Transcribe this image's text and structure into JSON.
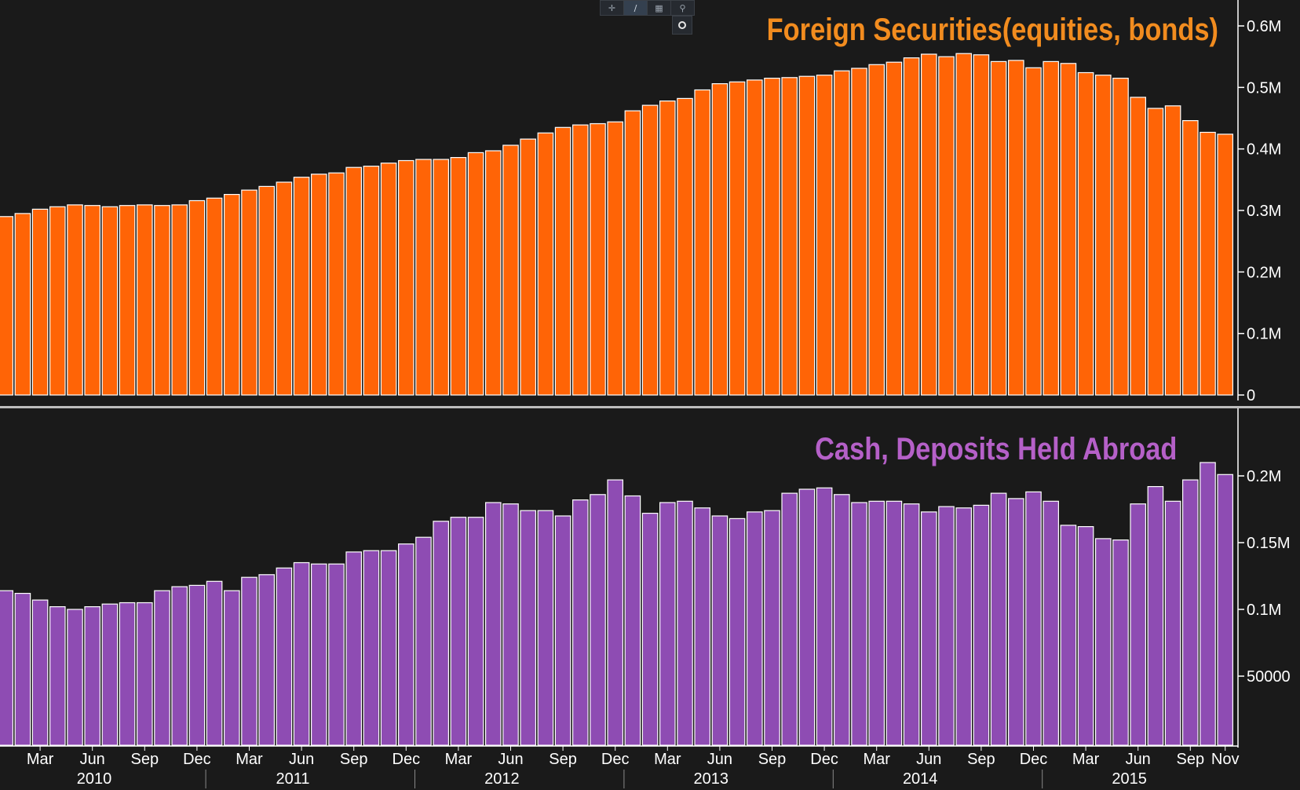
{
  "toolbar": {
    "buttons": [
      "crosshair-icon",
      "draw-line-icon",
      "note-icon",
      "zoom-icon"
    ],
    "extra": "settings-ring-icon"
  },
  "colors": {
    "background": "#1a1a1a",
    "securities_bar": "#ff6406",
    "deposits_bar": "#8e4cb3",
    "bar_outline": "#ffffff",
    "securities_title": "#f28c1f",
    "deposits_title": "#b560c8",
    "axis_text": "#ffffff",
    "divider": "#bdbdbd"
  },
  "chart_data": [
    {
      "type": "bar",
      "title": "Foreign Securities(equities, bonds)",
      "ylim": [
        0,
        0.6
      ],
      "y_unit": "M",
      "y_ticks": [
        "0",
        "0.1M",
        "0.2M",
        "0.3M",
        "0.4M",
        "0.5M",
        "0.6M"
      ],
      "series": [
        {
          "values": [
            0.29,
            0.295,
            0.302,
            0.306,
            0.309,
            0.308,
            0.306,
            0.308,
            0.309,
            0.308,
            0.309,
            0.316,
            0.32,
            0.326,
            0.333,
            0.339,
            0.346,
            0.354,
            0.359,
            0.361,
            0.37,
            0.372,
            0.377,
            0.381,
            0.383,
            0.383,
            0.386,
            0.394,
            0.397,
            0.406,
            0.416,
            0.426,
            0.435,
            0.439,
            0.441,
            0.444,
            0.462,
            0.471,
            0.478,
            0.482,
            0.496,
            0.506,
            0.509,
            0.512,
            0.515,
            0.516,
            0.518,
            0.52,
            0.527,
            0.531,
            0.537,
            0.541,
            0.548,
            0.554,
            0.55,
            0.555,
            0.553,
            0.542,
            0.544,
            0.532,
            0.542,
            0.539,
            0.524,
            0.52,
            0.515,
            0.484,
            0.466,
            0.47,
            0.446,
            0.427,
            0.424
          ]
        }
      ]
    },
    {
      "type": "bar",
      "title": "Cash, Deposits Held Abroad",
      "ylim": [
        0,
        0.23
      ],
      "y_unit": "M",
      "y_ticks": [
        "50000",
        "0.1M",
        "0.15M",
        "0.2M"
      ],
      "series": [
        {
          "values": [
            0.114,
            0.112,
            0.107,
            0.102,
            0.1,
            0.102,
            0.104,
            0.105,
            0.105,
            0.114,
            0.117,
            0.118,
            0.121,
            0.114,
            0.124,
            0.126,
            0.131,
            0.135,
            0.134,
            0.134,
            0.143,
            0.144,
            0.144,
            0.149,
            0.154,
            0.166,
            0.169,
            0.169,
            0.18,
            0.179,
            0.174,
            0.174,
            0.17,
            0.182,
            0.186,
            0.197,
            0.185,
            0.172,
            0.18,
            0.181,
            0.176,
            0.17,
            0.168,
            0.173,
            0.174,
            0.187,
            0.19,
            0.191,
            0.186,
            0.18,
            0.181,
            0.181,
            0.179,
            0.173,
            0.177,
            0.176,
            0.178,
            0.187,
            0.183,
            0.188,
            0.181,
            0.163,
            0.162,
            0.153,
            0.152,
            0.179,
            0.192,
            0.181,
            0.197,
            0.21,
            0.201
          ]
        }
      ]
    }
  ],
  "x_axis": {
    "month_labels": [
      {
        "label": "Mar",
        "index": 2
      },
      {
        "label": "Jun",
        "index": 5
      },
      {
        "label": "Sep",
        "index": 8
      },
      {
        "label": "Dec",
        "index": 11
      },
      {
        "label": "Mar",
        "index": 14
      },
      {
        "label": "Jun",
        "index": 17
      },
      {
        "label": "Sep",
        "index": 20
      },
      {
        "label": "Dec",
        "index": 23
      },
      {
        "label": "Mar",
        "index": 26
      },
      {
        "label": "Jun",
        "index": 29
      },
      {
        "label": "Sep",
        "index": 32
      },
      {
        "label": "Dec",
        "index": 35
      },
      {
        "label": "Mar",
        "index": 38
      },
      {
        "label": "Jun",
        "index": 41
      },
      {
        "label": "Sep",
        "index": 44
      },
      {
        "label": "Dec",
        "index": 47
      },
      {
        "label": "Mar",
        "index": 50
      },
      {
        "label": "Jun",
        "index": 53
      },
      {
        "label": "Sep",
        "index": 56
      },
      {
        "label": "Dec",
        "index": 59
      },
      {
        "label": "Mar",
        "index": 62
      },
      {
        "label": "Jun",
        "index": 65
      },
      {
        "label": "Sep",
        "index": 68
      },
      {
        "label": "Nov",
        "index": 70
      }
    ],
    "years": [
      "2010",
      "2011",
      "2012",
      "2013",
      "2014",
      "2015"
    ]
  }
}
